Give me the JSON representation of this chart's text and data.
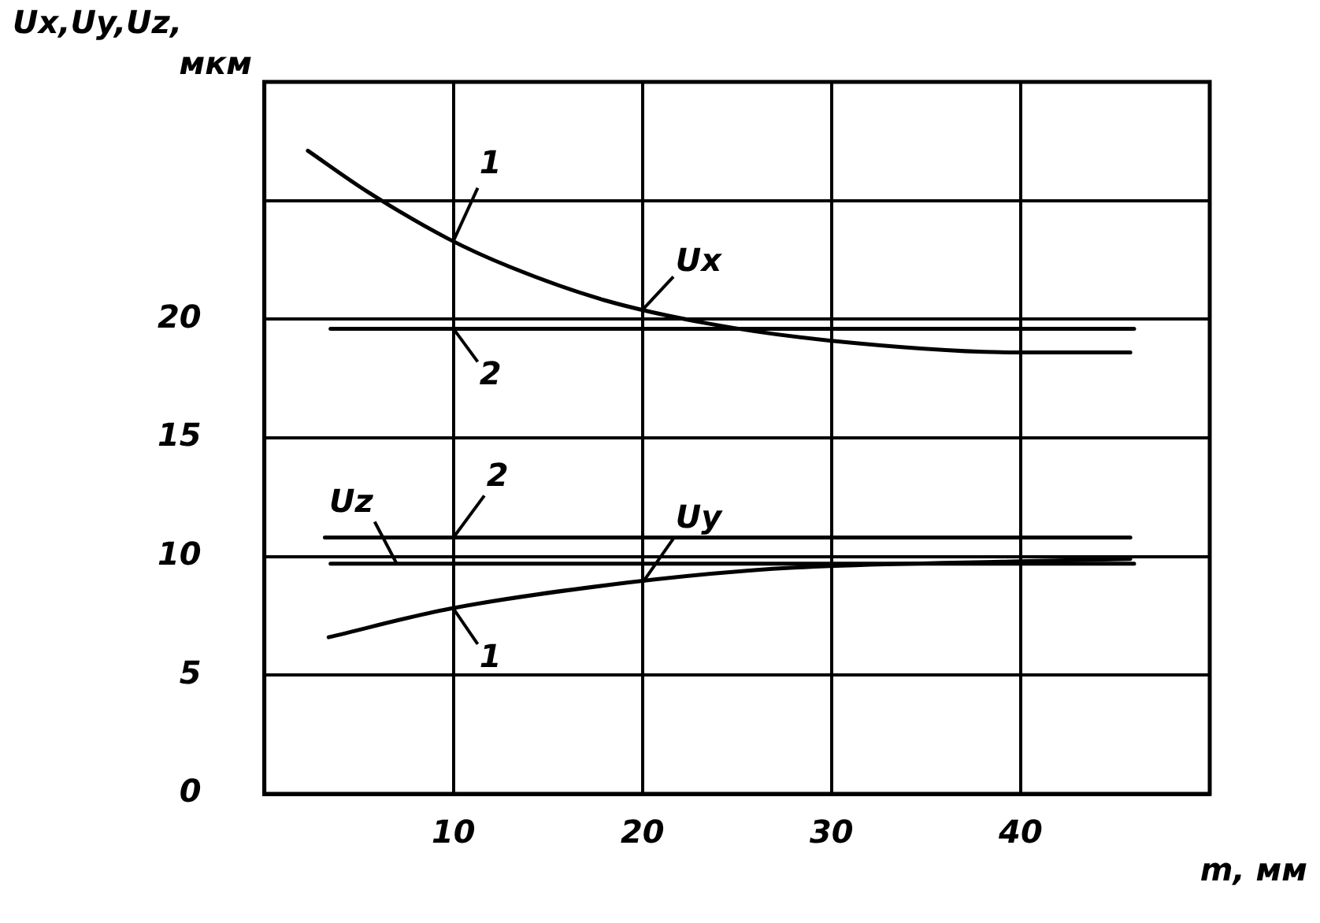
{
  "chart_data": {
    "type": "line",
    "ylabel": "Ux,Uy,Uz, мкм",
    "xlabel": "m, мм",
    "xlim": [
      0,
      50
    ],
    "xticks": [
      10,
      20,
      30,
      40
    ],
    "ylim": [
      0,
      30
    ],
    "yticks": [
      0,
      5,
      10,
      15,
      20,
      {
        "value": 25,
        "label": null
      },
      {
        "value": 30,
        "label": null
      }
    ],
    "grid": true,
    "marker": "none",
    "line_style": "solid",
    "series": [
      {
        "color": "#000000",
        "x": [
          2.3,
          5.4,
          9.7,
          13,
          18,
          23.6,
          29.9,
          39.9,
          45.8
        ],
        "values": [
          27.1,
          25.4,
          23.4,
          22.2,
          20.8,
          19.8,
          19.1,
          18.6,
          18.6
        ]
      },
      {
        "color": "#000000",
        "x": [
          3.5,
          46
        ],
        "values": [
          19.6,
          19.6
        ]
      },
      {
        "color": "#000000",
        "x": [
          3.2,
          45.8
        ],
        "values": [
          10.8,
          10.8
        ]
      },
      {
        "color": "#000000",
        "x": [
          3.5,
          46
        ],
        "values": [
          9.7,
          9.7
        ]
      },
      {
        "color": "#000000",
        "x": [
          3.4,
          9.8,
          19.2,
          25.5,
          29.9,
          39.9,
          45.8
        ],
        "values": [
          6.6,
          7.8,
          8.9,
          9.4,
          9.6,
          9.8,
          9.9
        ]
      }
    ],
    "annotations": [
      {
        "text": "1",
        "x": 10,
        "y": 23.3
      },
      {
        "text": "Ux",
        "x": 20,
        "y": 20.4
      },
      {
        "text": "2",
        "x": 10,
        "y": 19.6
      },
      {
        "text": "Uz",
        "x": 7,
        "y": 9.7
      },
      {
        "text": "2",
        "x": 10,
        "y": 10.8
      },
      {
        "text": "Uy",
        "x": 20,
        "y": 8.9
      },
      {
        "text": "1",
        "x": 10,
        "y": 7.8
      }
    ]
  }
}
